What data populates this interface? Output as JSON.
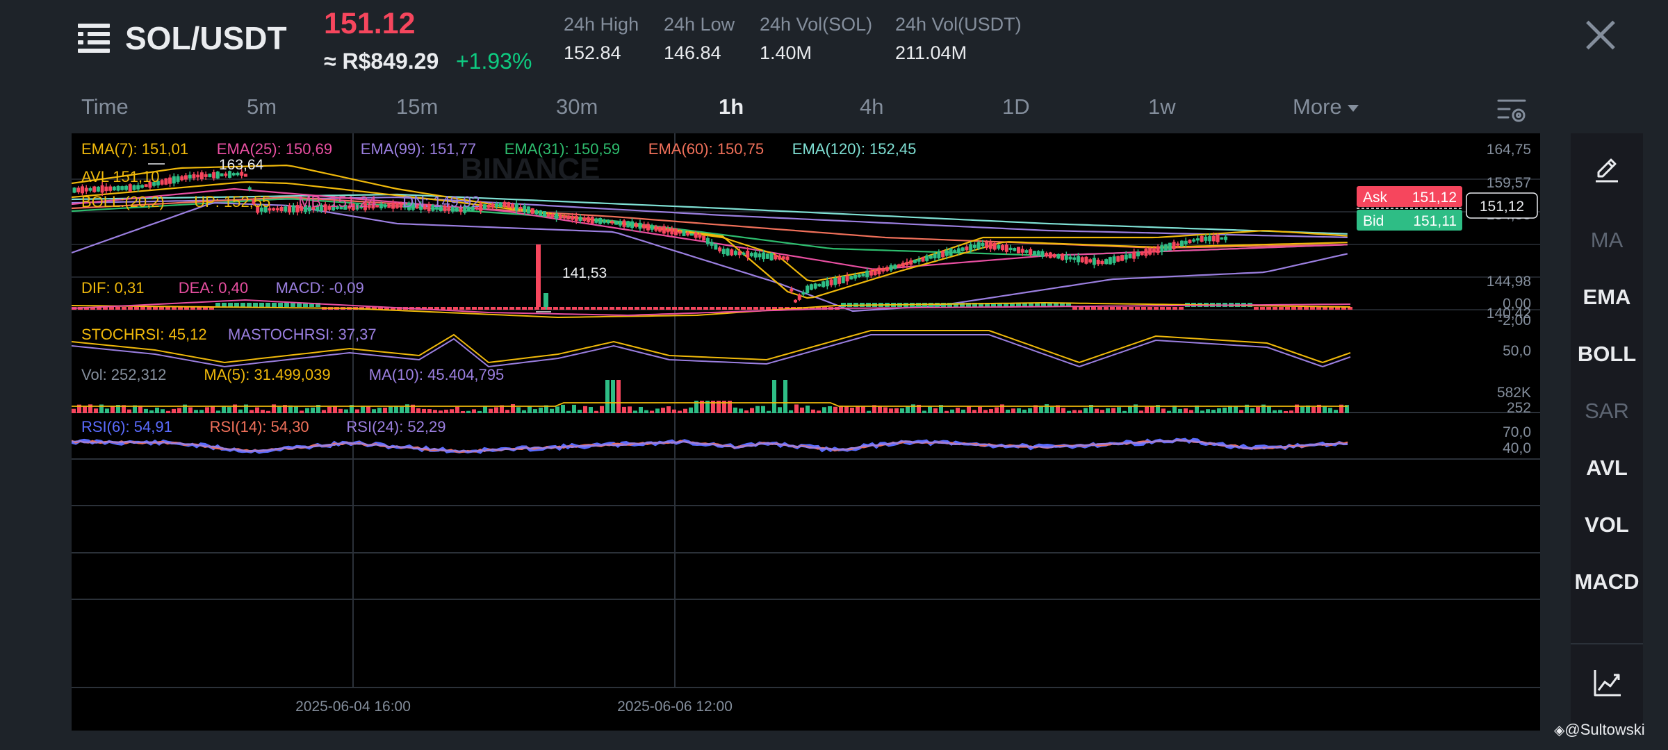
{
  "header": {
    "pair": "SOL/USDT",
    "last_price": "151.12",
    "fiat_price": "≈ R$849.29",
    "change": "+1.93%",
    "stats": [
      {
        "label": "24h High",
        "value": "152.84"
      },
      {
        "label": "24h Low",
        "value": "146.84"
      },
      {
        "label": "24h Vol(SOL)",
        "value": "1.40M"
      },
      {
        "label": "24h Vol(USDT)",
        "value": "211.04M"
      }
    ]
  },
  "intervals": [
    "Time",
    "5m",
    "15m",
    "30m",
    "1h",
    "4h",
    "1D",
    "1w",
    "More"
  ],
  "active_interval": "1h",
  "sidebar": [
    {
      "label": "MA",
      "active": false
    },
    {
      "label": "EMA",
      "active": true
    },
    {
      "label": "BOLL",
      "active": true
    },
    {
      "label": "SAR",
      "active": false
    },
    {
      "label": "AVL",
      "active": true
    },
    {
      "label": "VOL",
      "active": true
    },
    {
      "label": "MACD",
      "active": true
    }
  ],
  "chart": {
    "watermark": "BINANCE",
    "ema_legend": [
      {
        "text": "EMA(7): 151,01",
        "color": "#f0b90b"
      },
      {
        "text": "EMA(25): 150,69",
        "color": "#e84fa1"
      },
      {
        "text": "EMA(99): 151,77",
        "color": "#9b7fe0"
      },
      {
        "text": "EMA(31): 150,59",
        "color": "#2ebd6e"
      },
      {
        "text": "EMA(60): 150,75",
        "color": "#f0705a"
      },
      {
        "text": "EMA(120): 152,45",
        "color": "#7fe0d4"
      }
    ],
    "avl_legend": {
      "text": "AVL 151,10",
      "color": "#f0b90b"
    },
    "boll_legend": [
      {
        "text": "BOLL:(20,2)",
        "color": "#f0b90b"
      },
      {
        "text": "UP: 152,55",
        "color": "#f0b90b"
      },
      {
        "text": "MB: 151,24",
        "color": "#e84fa1"
      },
      {
        "text": "DN: 149,92",
        "color": "#9b7fe0"
      }
    ],
    "price_axis": [
      "164,75",
      "159,57",
      "154,55",
      "144,98",
      "140,42"
    ],
    "high_label": "163,64",
    "low_label": "141,53",
    "ask": {
      "label": "Ask",
      "value": "151,12",
      "color": "#f6465d"
    },
    "bid": {
      "label": "Bid",
      "value": "151,11",
      "color": "#2ebd85"
    },
    "current_price": "151,12",
    "macd_legend": [
      {
        "text": "DIF: 0,31",
        "color": "#f0b90b"
      },
      {
        "text": "DEA: 0,40",
        "color": "#e84fa1"
      },
      {
        "text": "MACD: -0,09",
        "color": "#9b7fe0"
      }
    ],
    "macd_axis": [
      "0,00",
      "-2,00"
    ],
    "stoch_legend": [
      {
        "text": "STOCHRSI: 45,12",
        "color": "#f0b90b"
      },
      {
        "text": "MASTOCHRSI: 37,37",
        "color": "#9b7fe0"
      }
    ],
    "stoch_axis": [
      "50,0"
    ],
    "vol_legend": [
      {
        "text": "Vol: 252,312",
        "color": "#848e9c"
      },
      {
        "text": "MA(5): 31.499,039",
        "color": "#f0b90b"
      },
      {
        "text": "MA(10): 45.404,795",
        "color": "#9b7fe0"
      }
    ],
    "vol_axis": [
      "582K",
      "252"
    ],
    "rsi_legend": [
      {
        "text": "RSI(6): 54,91",
        "color": "#5b6cff"
      },
      {
        "text": "RSI(14): 54,30",
        "color": "#f0705a"
      },
      {
        "text": "RSI(24): 52,29",
        "color": "#9b7fe0"
      }
    ],
    "rsi_axis": [
      "70,0",
      "40,0"
    ],
    "time_labels": [
      "2025-06-04 16:00",
      "2025-06-06 12:00"
    ]
  },
  "credit": "@Sultowski"
}
